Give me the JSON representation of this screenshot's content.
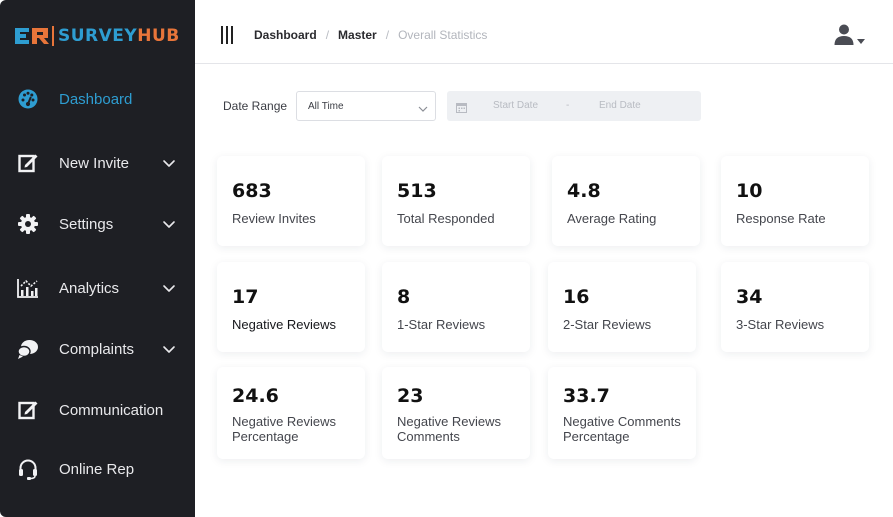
{
  "logo": {
    "part1": "SURVEY",
    "part2": "HUB"
  },
  "sidebar": {
    "items": [
      {
        "label": "Dashboard",
        "icon": "dashboard-gauge-icon",
        "active": true,
        "chevron": false
      },
      {
        "label": "New Invite",
        "icon": "edit-icon",
        "active": false,
        "chevron": true
      },
      {
        "label": "Settings",
        "icon": "gear-icon",
        "active": false,
        "chevron": true
      },
      {
        "label": "Analytics",
        "icon": "analytics-chart-icon",
        "active": false,
        "chevron": true
      },
      {
        "label": "Complaints",
        "icon": "chat-bubbles-icon",
        "active": false,
        "chevron": true
      },
      {
        "label": "Communication",
        "icon": "edit-icon",
        "active": false,
        "chevron": false
      },
      {
        "label": "Online Rep",
        "icon": "headset-icon",
        "active": false,
        "chevron": false
      }
    ]
  },
  "topbar": {
    "breadcrumb": [
      "Dashboard",
      "Master",
      "Overall Statistics"
    ],
    "separator": "/"
  },
  "filters": {
    "date_range_label": "Date Range",
    "range_value": "All Time",
    "start_date_placeholder": "Start Date",
    "end_date_placeholder": "End Date",
    "range_dash": "-"
  },
  "stats": [
    {
      "value": "683",
      "label": "Review Invites"
    },
    {
      "value": "513",
      "label": "Total Responded"
    },
    {
      "value": "4.8",
      "label": "Average Rating"
    },
    {
      "value": "10",
      "label": "Response Rate"
    },
    {
      "value": "17",
      "label": "Negative Reviews"
    },
    {
      "value": "8",
      "label": "1-Star Reviews"
    },
    {
      "value": "16",
      "label": "2-Star Reviews"
    },
    {
      "value": "34",
      "label": "3-Star Reviews"
    },
    {
      "value": "24.6",
      "label_line1": "Negative Reviews",
      "label_line2": "Percentage"
    },
    {
      "value": "23",
      "label_line1": "Negative Reviews",
      "label_line2": "Comments"
    },
    {
      "value": "33.7",
      "label_line1": "Negative Comments",
      "label_line2": "Percentage"
    }
  ],
  "colors": {
    "sidebar_bg": "#1e1f24",
    "accent_blue": "#2e9dd1",
    "accent_orange": "#e8753a"
  }
}
